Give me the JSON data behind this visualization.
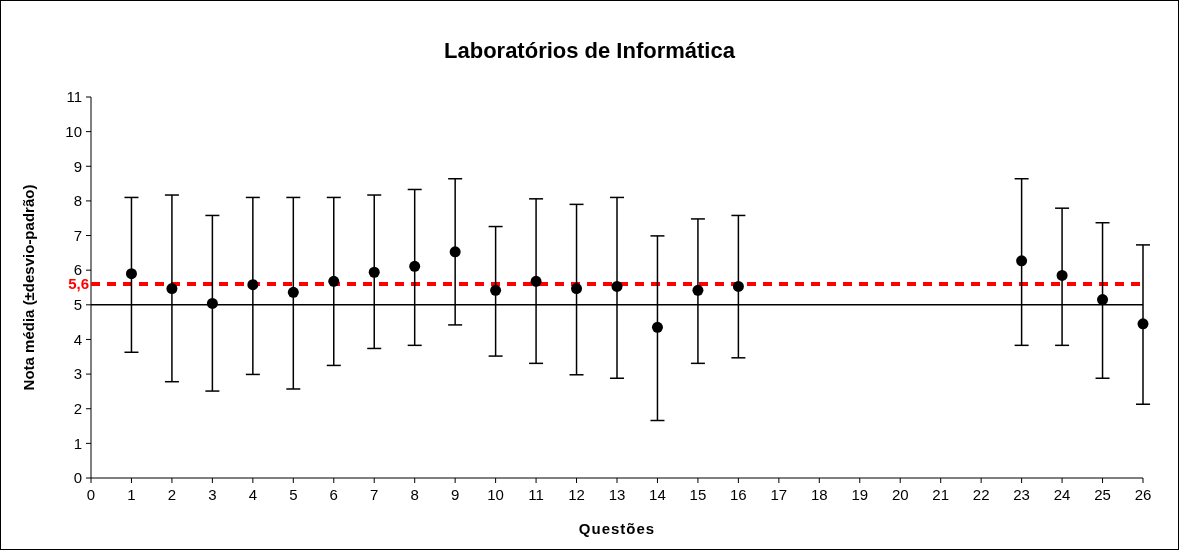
{
  "chart_data": {
    "type": "scatter",
    "title": "Laboratórios de Informática",
    "xlabel": "Questões",
    "ylabel": "Nota média (±desvio-padrão)",
    "x": [
      1,
      2,
      3,
      4,
      5,
      6,
      7,
      8,
      9,
      10,
      11,
      12,
      13,
      14,
      15,
      16,
      23,
      24,
      25,
      26
    ],
    "values": [
      5.9,
      5.47,
      5.04,
      5.58,
      5.36,
      5.68,
      5.94,
      6.11,
      6.53,
      5.42,
      5.68,
      5.47,
      5.53,
      4.35,
      5.42,
      5.53,
      6.27,
      5.85,
      5.15,
      4.45
    ],
    "errors": [
      [
        3.63,
        8.1
      ],
      [
        2.78,
        8.17
      ],
      [
        2.51,
        7.58
      ],
      [
        2.99,
        8.1
      ],
      [
        2.57,
        8.1
      ],
      [
        3.25,
        8.1
      ],
      [
        3.74,
        8.17
      ],
      [
        3.83,
        8.33
      ],
      [
        4.42,
        8.64
      ],
      [
        3.52,
        7.26
      ],
      [
        3.31,
        8.06
      ],
      [
        2.98,
        7.9
      ],
      [
        2.88,
        8.1
      ],
      [
        1.66,
        6.99
      ],
      [
        3.31,
        7.48
      ],
      [
        3.47,
        7.58
      ],
      [
        3.83,
        8.64
      ],
      [
        3.83,
        7.79
      ],
      [
        2.88,
        7.37
      ],
      [
        2.13,
        6.73
      ]
    ],
    "color": "#000000",
    "marker": "circle",
    "xlim": [
      0,
      26
    ],
    "xticks": [
      0,
      1,
      2,
      3,
      4,
      5,
      6,
      7,
      8,
      9,
      10,
      11,
      12,
      13,
      14,
      15,
      16,
      17,
      18,
      19,
      20,
      21,
      22,
      23,
      24,
      25,
      26
    ],
    "ylim": [
      0,
      11
    ],
    "yticks": [
      0,
      1,
      2,
      3,
      4,
      5,
      6,
      7,
      8,
      9,
      10,
      11
    ],
    "ref_lines": [
      {
        "axis": "y",
        "value": 5,
        "label": null,
        "color": "#000000",
        "line_style": "solid"
      },
      {
        "axis": "y",
        "value": 5.6,
        "label": "5,6",
        "color": "#ff0000",
        "line_style": "dashed"
      }
    ],
    "grid": false
  }
}
